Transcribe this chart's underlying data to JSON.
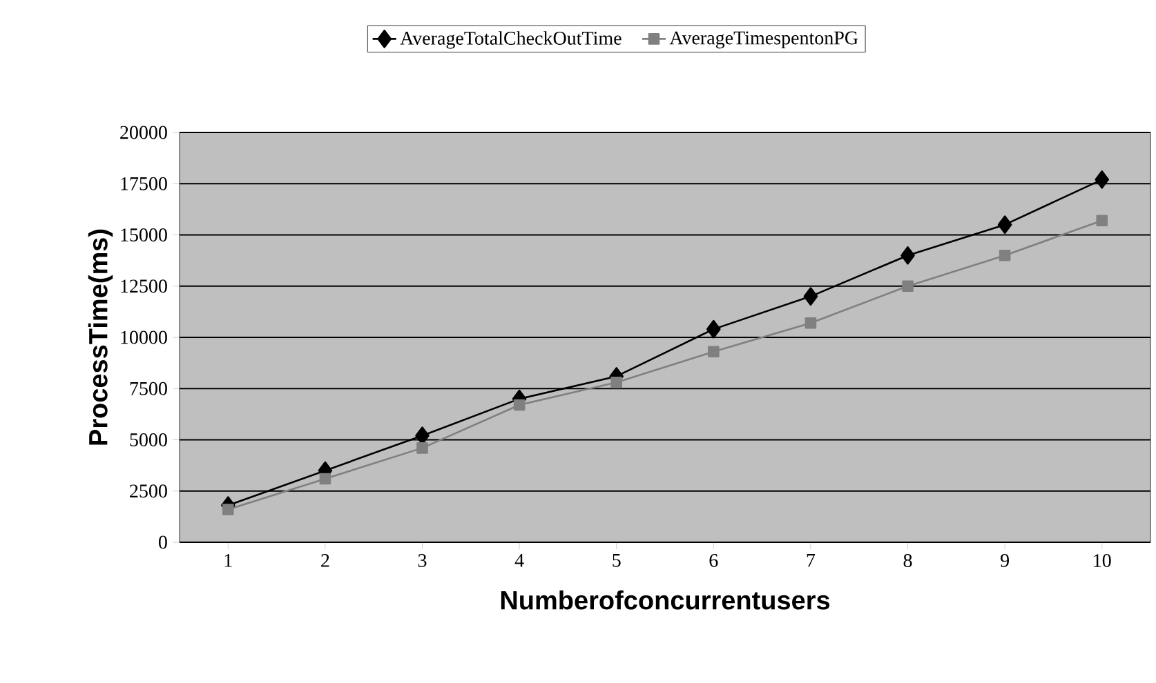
{
  "chart_data": {
    "type": "line",
    "xlabel": "Numberofconcurrentusers",
    "ylabel": "ProcessTime(ms)",
    "categories": [
      "1",
      "2",
      "3",
      "4",
      "5",
      "6",
      "7",
      "8",
      "9",
      "10"
    ],
    "series": [
      {
        "name": "AverageTotalCheckOutTime",
        "color": "#000000",
        "marker": "diamond",
        "values": [
          1800,
          3500,
          5200,
          7000,
          8100,
          10400,
          12000,
          14000,
          15500,
          17700
        ]
      },
      {
        "name": "AverageTimespentonPG",
        "color": "#808080",
        "marker": "square",
        "values": [
          1600,
          3100,
          4600,
          6700,
          7800,
          9300,
          10700,
          12500,
          14000,
          15700
        ]
      }
    ],
    "ylim": [
      0,
      20000
    ],
    "yticks": [
      0,
      2500,
      5000,
      7500,
      10000,
      12500,
      15000,
      17500,
      20000
    ],
    "grid": "y",
    "legend": "top",
    "line_style": "solid"
  }
}
